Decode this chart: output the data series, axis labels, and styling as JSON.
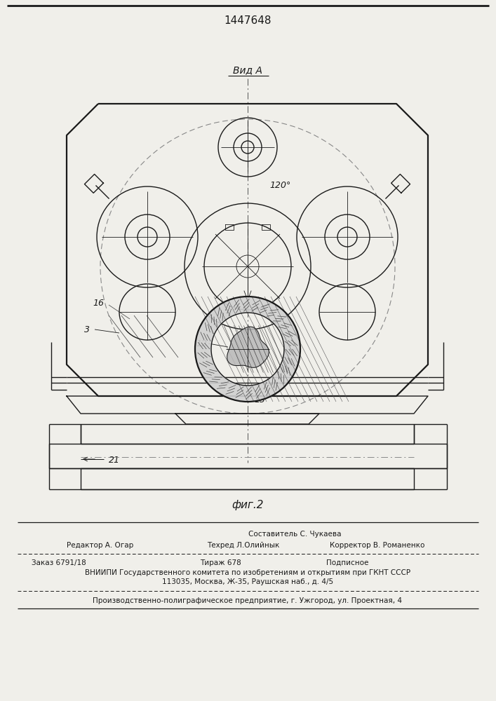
{
  "title": "1447648",
  "view_label": "Вид А",
  "fig_label": "фиг.2",
  "bg_color": "#f0efea",
  "line_color": "#1a1a1a",
  "footer": {
    "line1_center": "Составитель С. Чукаева",
    "line2_left": "Редактор А. Огар",
    "line2_mid": "Техред Л.Олийнык",
    "line2_right": "Корректор В. Романенко",
    "line3_col1": "Заказ 6791/18",
    "line3_col2": "Тираж 678",
    "line3_col3": "Подписное",
    "line4": "ВНИИПИ Государственного комитета по изобретениям и открытиям при ГКНТ СССР",
    "line5": "113035, Москва, Ж-35, Раушская наб., д. 4/5",
    "line6": "Производственно-полиграфическое предприятие, г. Ужгород, ул. Проектная, 4"
  }
}
